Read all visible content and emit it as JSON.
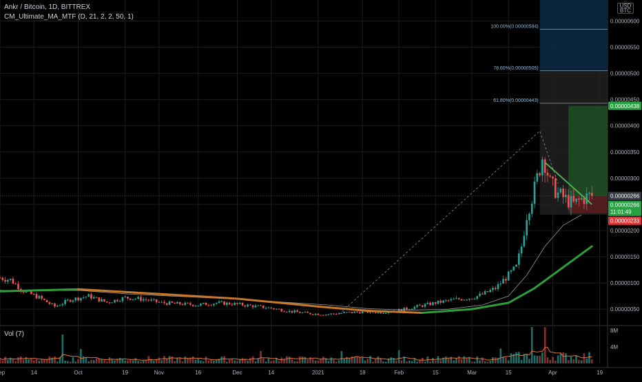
{
  "legend": {
    "symbol_line": "Ankr / Bitcoin, 1D, BITTREX",
    "indicator_line": "CM_Ultimate_MA_MTF (D, 21, 2, 2, 50, 1)"
  },
  "volume_label": "Vol (7)",
  "currency_badge": "USD\nBTC",
  "currency_badge_lines": [
    "USD",
    "BTC"
  ],
  "colors": {
    "up": "#26a69a",
    "down": "#ef5350",
    "ma_slow": "#2e8b3a",
    "ma_fast_orange": "#c8782a",
    "ma_fast_green": "#2e9e3a",
    "grid": "#1c1c1c",
    "axis_text": "#b2b5be",
    "fib_blue_zone": "#0b2a45",
    "fib_gray_zone": "#222222",
    "target_green": "#1f4d25",
    "stop_red": "#5a1e1e",
    "price_badge_green": "#26a041",
    "price_badge_red": "#e03535",
    "price_badge_gray": "#363a45"
  },
  "chart_data": [
    {
      "type": "candlestick",
      "title": "Ankr / Bitcoin, 1D, BITTREX",
      "y_axis": {
        "ticks": [
          "0.00000600",
          "0.00000550",
          "0.00000500",
          "0.00000450",
          "0.00000400",
          "0.00000350",
          "0.00000300",
          "0.00000250",
          "0.00000200",
          "0.00000150",
          "0.00000100",
          "0.00000050"
        ],
        "tick_values": [
          6e-06,
          5.5e-06,
          5e-06,
          4.5e-06,
          4e-06,
          3.5e-06,
          3e-06,
          2.5e-06,
          2e-06,
          1.5e-06,
          1e-06,
          5e-07
        ],
        "ylim": [
          2e-07,
          6.4e-06
        ],
        "position": "right"
      },
      "x_axis": {
        "ticks": [
          "Sep",
          "14",
          "Oct",
          "19",
          "Nov",
          "16",
          "Dec",
          "14",
          "2021",
          "18",
          "Feb",
          "15",
          "Mar",
          "15",
          "Apr",
          "19"
        ],
        "start": "2020-09-01",
        "end": "2021-04-19"
      },
      "grid": true,
      "series": [
        {
          "name": "Ankr / Bitcoin",
          "kind": "close",
          "x": [
            "2020-09-01",
            "2020-09-05",
            "2020-09-10",
            "2020-09-16",
            "2020-09-22",
            "2020-09-28",
            "2020-10-05",
            "2020-10-12",
            "2020-10-19",
            "2020-10-26",
            "2020-11-02",
            "2020-11-09",
            "2020-11-16",
            "2020-11-23",
            "2020-11-30",
            "2020-12-07",
            "2020-12-14",
            "2020-12-21",
            "2020-12-28",
            "2021-01-04",
            "2021-01-11",
            "2021-01-18",
            "2021-01-25",
            "2021-02-01",
            "2021-02-08",
            "2021-02-15",
            "2021-02-22",
            "2021-03-01",
            "2021-03-05",
            "2021-03-10",
            "2021-03-15",
            "2021-03-18",
            "2021-03-20",
            "2021-03-22",
            "2021-03-25",
            "2021-03-28",
            "2021-03-29",
            "2021-03-31",
            "2021-04-03",
            "2021-04-06",
            "2021-04-09",
            "2021-04-12",
            "2021-04-15"
          ],
          "values": [
            1.1e-06,
            1.06e-06,
            8.5e-07,
            7.2e-07,
            5.5e-07,
            6.8e-07,
            7.5e-07,
            6.3e-07,
            7.2e-07,
            6.9e-07,
            6.2e-07,
            6e-07,
            5.8e-07,
            6.2e-07,
            6e-07,
            5.6e-07,
            5.2e-07,
            4.6e-07,
            4.2e-07,
            4e-07,
            4.3e-07,
            4.5e-07,
            4.4e-07,
            4.8e-07,
            5.5e-07,
            6.2e-07,
            6.8e-07,
            7.2e-07,
            7.8e-07,
            9e-07,
            1.15e-06,
            1.3e-06,
            1.7e-06,
            2.3e-06,
            2.8e-06,
            3.4e-06,
            3.3e-06,
            2.9e-06,
            2.7e-06,
            2.6e-06,
            2.5e-06,
            2.6e-06,
            2.66e-06
          ]
        },
        {
          "name": "CM_Ultimate_MA_MTF 21",
          "kind": "ma",
          "x": [
            "2020-09-01",
            "2020-09-15",
            "2020-10-01",
            "2020-10-20",
            "2020-11-10",
            "2020-12-01",
            "2020-12-20",
            "2021-01-05",
            "2021-01-20",
            "2021-02-05",
            "2021-02-20",
            "2021-03-05",
            "2021-03-15",
            "2021-03-22",
            "2021-03-29",
            "2021-04-05",
            "2021-04-12"
          ],
          "values": [
            8.6e-07,
            8.5e-07,
            8.6e-07,
            7.9e-07,
            7.4e-07,
            6.9e-07,
            6.3e-07,
            5.8e-07,
            5.1e-07,
            4.8e-07,
            5e-07,
            5.8e-07,
            7.5e-07,
            1.15e-06,
            1.7e-06,
            2.1e-06,
            2.3e-06
          ]
        },
        {
          "name": "CM_Ultimate_MA_MTF 50",
          "kind": "ma",
          "x": [
            "2020-09-01",
            "2020-10-01",
            "2020-11-01",
            "2020-12-01",
            "2021-01-01",
            "2021-01-20",
            "2021-02-10",
            "2021-03-01",
            "2021-03-15",
            "2021-03-25",
            "2021-04-05",
            "2021-04-16"
          ],
          "values": [
            8.4e-07,
            8.8e-07,
            7.9e-07,
            7e-07,
            5.5e-07,
            4.7e-07,
            4.3e-07,
            5e-07,
            6.2e-07,
            9e-07,
            1.3e-06,
            1.7e-06
          ]
        }
      ],
      "annotations": {
        "fib_levels": [
          {
            "label": "100.00%(0.00000584)",
            "value": 5.84e-06
          },
          {
            "label": "78.60%(0.00000505)",
            "value": 5.05e-06
          },
          {
            "label": "61.80%(0.00000443)",
            "value": 4.43e-06
          }
        ],
        "price_labels": [
          {
            "text": "0.00000438",
            "kind": "target",
            "value": 4.38e-06
          },
          {
            "text": "0.00000266",
            "kind": "last_close",
            "value": 2.66e-06
          },
          {
            "text": "0.00000266",
            "kind": "current",
            "value": 2.66e-06,
            "countdown": "11:01:49"
          },
          {
            "text": "0.00000233",
            "kind": "stop",
            "value": 2.33e-06
          }
        ],
        "trendline_top": {
          "x": [
            "2021-03-29",
            "2021-04-16"
          ],
          "values": [
            3.3e-06,
            2.5e-06
          ]
        },
        "dotted_projection": {
          "x": [
            "2021-01-09",
            "2021-03-27",
            "2021-04-03"
          ],
          "values": [
            4e-07,
            3.9e-06,
            2.9e-06
          ]
        }
      }
    },
    {
      "type": "bar",
      "title": "Vol (7)",
      "y_axis": {
        "ticks": [
          "8M",
          "4M"
        ],
        "tick_values": [
          8000000,
          4000000
        ],
        "ylim": [
          0,
          9000000
        ]
      },
      "x": {
        "start": "2020-09-01",
        "end": "2021-04-19"
      },
      "values_note": "daily volume bars; peaks near 2020-09-25 (~7M), 2021-03-24 (~8.5M), 2021-03-29 (~8M)",
      "series": [
        {
          "name": "Vol (7)",
          "kind": "ma_line"
        }
      ]
    }
  ]
}
